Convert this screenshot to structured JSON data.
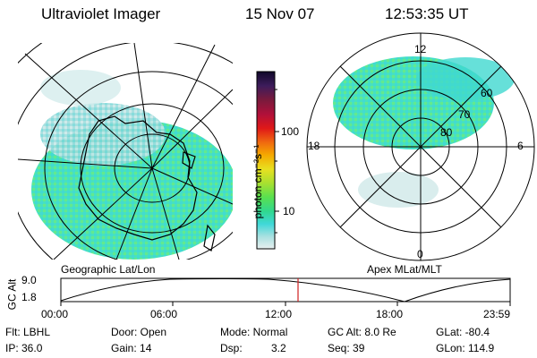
{
  "header": {
    "title": "Ultraviolet Imager",
    "date": "15 Nov 07",
    "time": "12:53:35 UT"
  },
  "left_panel": {
    "label": "Geographic Lat/Lon"
  },
  "right_panel": {
    "label": "Apex MLat/MLT",
    "lat_labels": [
      "60",
      "70",
      "80"
    ],
    "mlt_labels": {
      "top": "12",
      "left": "18",
      "right": "6",
      "bottom": "0"
    }
  },
  "colorbar": {
    "unit_label": "photon cm⁻²s⁻¹",
    "tick_labels": [
      "100",
      "10"
    ],
    "colors": [
      "#10082a",
      "#3d1c5b",
      "#7a1a3c",
      "#b0103a",
      "#e01818",
      "#f06a10",
      "#f5a800",
      "#e8e020",
      "#a8e030",
      "#58e050",
      "#30d890",
      "#40d8d8",
      "#a8e0e0",
      "#e8f0f0"
    ]
  },
  "timeline": {
    "alt_axis_label": "GC Alt",
    "alt_max": "9.0",
    "alt_min": "1.8",
    "ticks": [
      "00:00",
      "06:00",
      "12:00",
      "18:00",
      "23:59"
    ],
    "current_marker_color": "#d02020"
  },
  "status": {
    "flt": "Flt: LBHL",
    "ip": "IP: 36.0",
    "door": "Door: Open",
    "gain": "Gain: 14",
    "mode": "Mode: Normal",
    "dsp_label": "Dsp:",
    "dsp_value": "3.2",
    "gc_alt": "GC Alt: 8.0 Re",
    "seq": "Seq: 39",
    "glat": "GLat: -80.4",
    "glon": "GLon: 114.9"
  }
}
